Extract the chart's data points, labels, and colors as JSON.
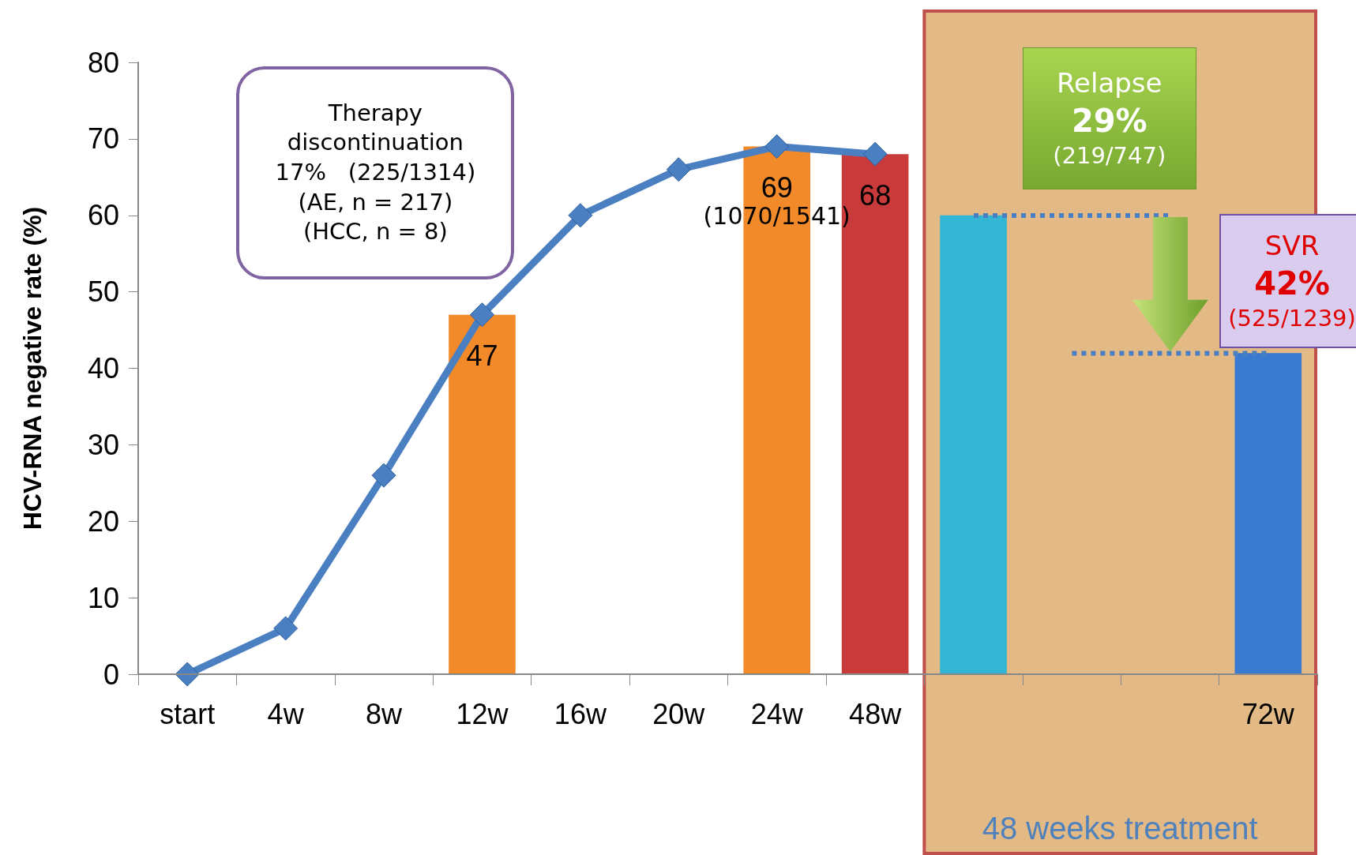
{
  "chart_data": {
    "type": "bar",
    "ylabel": "HCV-RNA negative rate (%)",
    "categories": [
      "start",
      "4w",
      "8w",
      "12w",
      "16w",
      "20w",
      "24w",
      "48w",
      null,
      null,
      null,
      "72w"
    ],
    "ylim": [
      0,
      80
    ],
    "yticks": [
      0,
      10,
      20,
      30,
      40,
      50,
      60,
      70,
      80
    ],
    "grid": false,
    "series": [
      {
        "colors": [
          null,
          null,
          null,
          "#f28a2a",
          null,
          null,
          "#f28a2a",
          "#c93a3a",
          "#33b5d6",
          null,
          null,
          "#3a7bcf"
        ],
        "values": [
          null,
          null,
          null,
          47,
          null,
          null,
          69,
          68,
          60,
          null,
          null,
          42
        ],
        "value_labels": [
          null,
          null,
          null,
          "47",
          null,
          null,
          "69",
          "68",
          null,
          null,
          null,
          null
        ]
      },
      {
        "type": "line",
        "color": "#4a7fc1",
        "marker": "diamond",
        "line_style": "solid",
        "values": [
          0,
          6,
          26,
          47,
          60,
          66,
          69,
          68,
          null,
          null,
          null,
          null
        ]
      }
    ],
    "bands": [
      {
        "axis": "x",
        "from": "48w",
        "to": "72w",
        "label": "48 weeks treatment",
        "color": "#e3b985"
      }
    ],
    "annotations": [
      "Therapy\ndiscontinuation\n17%   (225/1314)\n(AE, n = 217)\n(HCC, n = 8)",
      "(1070/1541)",
      "Relapse\n29%\n(219/747)",
      "SVR\n42%\n(525/1239)"
    ]
  }
}
